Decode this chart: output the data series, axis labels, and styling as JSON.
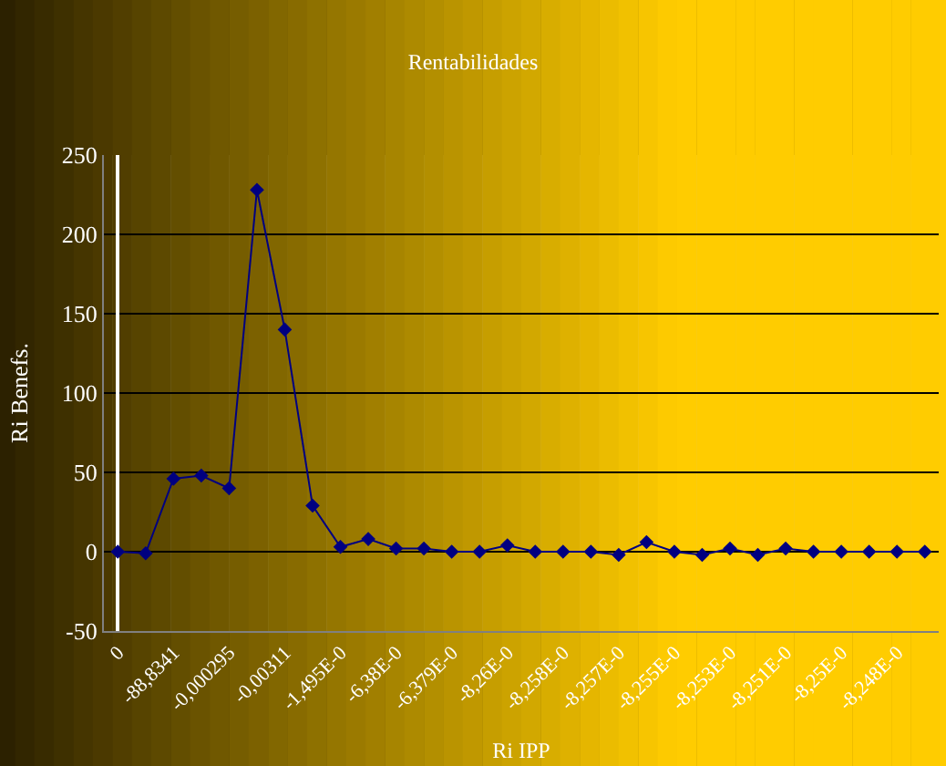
{
  "chart_data": {
    "type": "line",
    "title": "Rentabilidades",
    "xlabel": "Ri IPP",
    "ylabel": "Ri Benefs.",
    "categories": [
      "0",
      null,
      "-88,8341",
      null,
      "-0,000295",
      null,
      "-0,00311",
      null,
      "-1,495E-0",
      null,
      "-6,38E-0",
      null,
      "-6,379E-0",
      null,
      "-8,26E-0",
      null,
      "-8,258E-0",
      null,
      "-8,257E-0",
      null,
      "-8,255E-0",
      null,
      "-8,253E-0",
      null,
      "-8,251E-0",
      null,
      "-8,25E-0",
      null,
      "-8,248E-0",
      null
    ],
    "series": [
      {
        "color": "#000080",
        "values": [
          0,
          -1,
          46,
          48,
          40,
          228,
          140,
          29,
          3,
          8,
          2,
          2,
          0,
          0,
          4,
          0,
          0,
          0,
          -2,
          6,
          0,
          -2,
          2,
          -2,
          2,
          0,
          0,
          0,
          0,
          0
        ]
      }
    ],
    "ylim": [
      -50,
      250
    ],
    "yticks": [
      -50,
      0,
      50,
      100,
      150,
      200,
      250
    ],
    "grid": "y",
    "legend": false,
    "marker": "diamond",
    "line_style": "solid"
  }
}
